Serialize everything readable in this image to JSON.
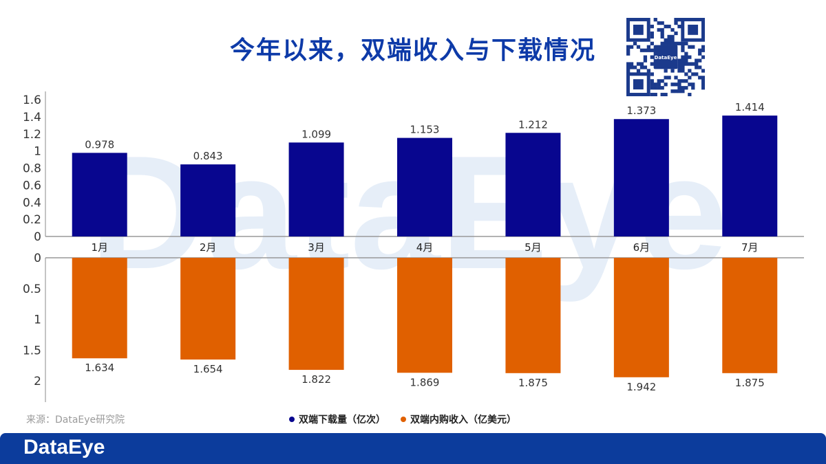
{
  "header": {
    "title": "今年以来，双端收入与下载情况"
  },
  "qr": {
    "logo_text": "DataEye"
  },
  "watermark": "DataEye",
  "chart_data": [
    {
      "type": "bar",
      "categories": [
        "1月",
        "2月",
        "3月",
        "4月",
        "5月",
        "6月",
        "7月"
      ],
      "series": [
        {
          "name": "双端下载量（亿次）",
          "values": [
            0.978,
            0.843,
            1.099,
            1.153,
            1.212,
            1.373,
            1.414
          ],
          "color": "#08068f"
        }
      ],
      "ylim": [
        0,
        1.6
      ],
      "yticks": [
        "0",
        "0.2",
        "0.4",
        "0.6",
        "0.8",
        "1",
        "1.2",
        "1.4",
        "1.6"
      ],
      "value_labels": [
        "0.978",
        "0.843",
        "1.099",
        "1.153",
        "1.212",
        "1.373",
        "1.414"
      ]
    },
    {
      "type": "bar",
      "categories": [
        "1月",
        "2月",
        "3月",
        "4月",
        "5月",
        "6月",
        "7月"
      ],
      "series": [
        {
          "name": "双端内购收入（亿美元）",
          "values": [
            1.634,
            1.654,
            1.822,
            1.869,
            1.875,
            1.942,
            1.875
          ],
          "color": "#e06000"
        }
      ],
      "ylim": [
        0,
        2
      ],
      "reversed": true,
      "yticks": [
        "0",
        "0.5",
        "1",
        "1.5",
        "2"
      ],
      "value_labels": [
        "1.634",
        "1.654",
        "1.822",
        "1.869",
        "1.875",
        "1.942",
        "1.875"
      ]
    }
  ],
  "legend": [
    {
      "label": "双端下载量（亿次）",
      "color": "#08068f"
    },
    {
      "label": "双端内购收入（亿美元）",
      "color": "#e06000"
    }
  ],
  "source": "来源：DataEye研究院",
  "footer": {
    "logo": "DataEye"
  }
}
